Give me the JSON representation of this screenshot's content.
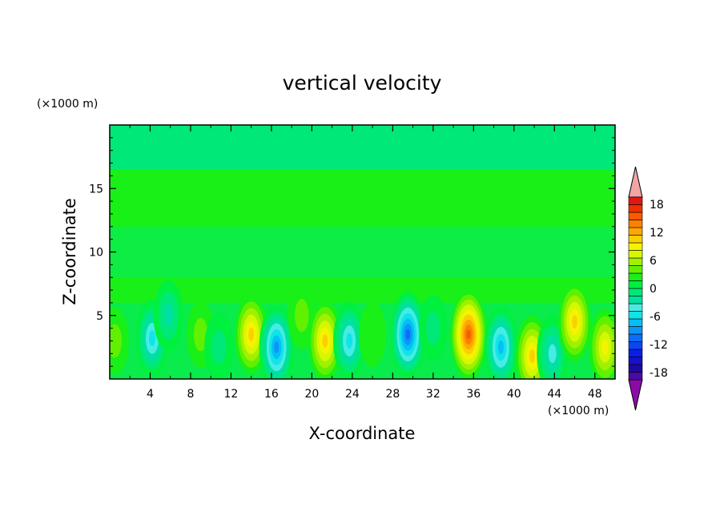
{
  "chart_data": {
    "type": "heatmap",
    "title": "vertical velocity",
    "xlabel": "X-coordinate",
    "ylabel": "Z-coordinate",
    "x_unit": "(×1000 m)",
    "y_unit": "(×1000 m)",
    "xlim": [
      0,
      50
    ],
    "ylim": [
      0,
      20
    ],
    "x_ticks": [
      "4",
      "8",
      "12",
      "16",
      "20",
      "24",
      "28",
      "32",
      "36",
      "40",
      "44",
      "48"
    ],
    "y_ticks": [
      "5",
      "10",
      "15"
    ],
    "colorbar": {
      "labels": [
        "18",
        "12",
        "6",
        "0",
        "-6",
        "-12",
        "-18"
      ],
      "levels": [
        -21,
        -19.5,
        -18,
        -16.5,
        -15,
        -13.5,
        -12,
        -10.5,
        -9,
        -7.5,
        -6,
        -4.5,
        -3,
        -1.5,
        0,
        1.5,
        3,
        4.5,
        6,
        7.5,
        9,
        10.5,
        12,
        13.5,
        15,
        16.5,
        18,
        19.5,
        21
      ],
      "colors": [
        "#8e0aa8",
        "#4a0aa6",
        "#2008a0",
        "#1810c8",
        "#0a1ee8",
        "#0a46f4",
        "#0a6ef8",
        "#0a96f8",
        "#06bef4",
        "#10e4e8",
        "#46ece4",
        "#00e0a0",
        "#00e878",
        "#00f040",
        "#18f018",
        "#60f000",
        "#a0f000",
        "#d4f800",
        "#f4f400",
        "#fcd000",
        "#fca800",
        "#fc8000",
        "#f85a00",
        "#f03000",
        "#e01810",
        "#f4a4a4"
      ]
    },
    "cells": [
      {
        "x": 0.5,
        "z": 3.0,
        "w": 3.0
      },
      {
        "x": 4.2,
        "z": 3.2,
        "w": -8.0
      },
      {
        "x": 5.8,
        "z": 5.0,
        "w": -5.0
      },
      {
        "x": 9.0,
        "z": 3.5,
        "w": 3.0
      },
      {
        "x": 10.8,
        "z": 2.5,
        "w": -4.0
      },
      {
        "x": 14.0,
        "z": 3.5,
        "w": 9.0
      },
      {
        "x": 16.5,
        "z": 2.5,
        "w": -11.0
      },
      {
        "x": 19.0,
        "z": 5.0,
        "w": 3.0
      },
      {
        "x": 21.3,
        "z": 3.0,
        "w": 10.0
      },
      {
        "x": 23.7,
        "z": 3.0,
        "w": -8.0
      },
      {
        "x": 26.0,
        "z": 3.5,
        "w": 2.0
      },
      {
        "x": 29.5,
        "z": 3.5,
        "w": -12.0
      },
      {
        "x": 32.0,
        "z": 4.0,
        "w": -3.0
      },
      {
        "x": 35.5,
        "z": 3.5,
        "w": 14.0
      },
      {
        "x": 38.7,
        "z": 2.5,
        "w": -10.0
      },
      {
        "x": 41.8,
        "z": 1.8,
        "w": 10.0
      },
      {
        "x": 43.8,
        "z": 2.0,
        "w": -7.0
      },
      {
        "x": 46.0,
        "z": 4.5,
        "w": 9.0
      },
      {
        "x": 49.0,
        "z": 2.5,
        "w": 8.0
      }
    ]
  }
}
